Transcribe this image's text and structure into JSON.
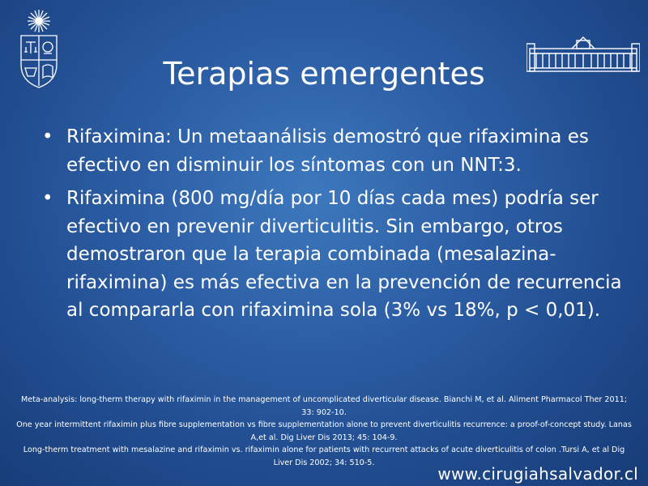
{
  "slide": {
    "title": "Terapias emergentes",
    "bullets": [
      "Rifaximina: Un metaanálisis demostró que rifaximina es efectivo en disminuir los síntomas con un NNT:3.",
      "Rifaximina (800 mg/día por 10 días cada mes) podría ser efectivo en prevenir diverticulitis. Sin embargo, otros demostraron que la terapia combinada (mesalazina-rifaximina) es más efectiva en la prevención de recurrencia al compararla con rifaximina sola (3% vs 18%, p < 0,01)."
    ],
    "references": [
      "Meta-analysis: long-therm therapy with rifaximin in the management of uncomplicated diverticular disease. Bianchi M, et al. Aliment Pharmacol Ther 2011; 33: 902-10.",
      "One year intermittent rifaximin plus fibre supplementation vs fibre supplementation alone to prevent diverticulitis recurrence: a proof-of-concept study. Lanas A,et al. Dig Liver Dis 2013; 45: 104-9.",
      "Long-therm treatment with mesalazine and rifaximin vs. rifaximin alone for patients with recurrent attacks of acute diverticulitis of colon .Tursi A, et al Dig Liver Dis 2002; 34: 510-5."
    ],
    "footer_url": "www.cirugiahsalvador.cl"
  },
  "icons": {
    "left_logo": "university-crest-icon",
    "right_logo": "hospital-building-icon"
  },
  "colors": {
    "background": "#2d5fa6",
    "text": "#ffffff"
  }
}
